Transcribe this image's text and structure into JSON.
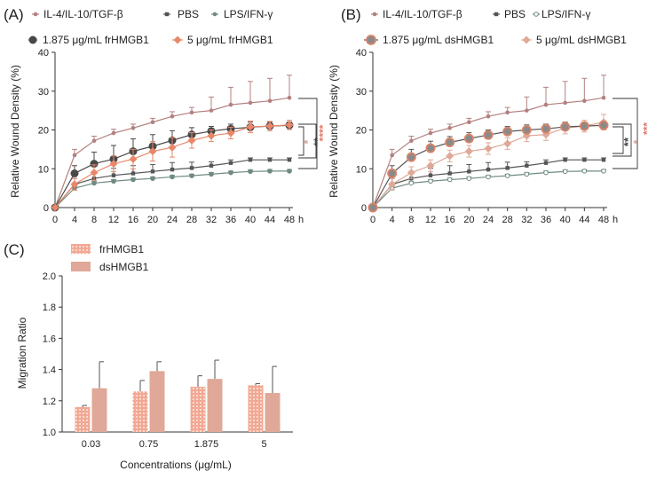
{
  "colors": {
    "il4": "#b48080",
    "pbs": "#555555",
    "lps": "#6f8a82",
    "fr_low": "#484848",
    "fr_high": "#e8876a",
    "ds_high": "#dfa898",
    "ds_low_fill": "#8a8a8a",
    "ds_low_edge": "#d98468",
    "bar_fr": "#f2a892",
    "bar_ds": "#e0a898",
    "axis": "#333333",
    "star_dark": "#444444",
    "star_red": "#e0786a",
    "star_pink": "#dca090"
  },
  "chart_data": [
    {
      "panel": "(A)",
      "type": "line",
      "ylabel": "Relative Wound Density (%)",
      "x_unit": "h",
      "ylim": [
        0,
        40
      ],
      "yticks": [
        0,
        10,
        20,
        30,
        40
      ],
      "x": [
        0,
        4,
        8,
        12,
        16,
        20,
        24,
        28,
        32,
        36,
        40,
        44,
        48
      ],
      "legend": [
        "IL-4/IL-10/TGF-β",
        "PBS",
        "LPS/IFN-γ",
        "1.875 μg/mL frHMGB1",
        "5 μg/mL frHMGB1"
      ],
      "series": [
        {
          "name": "IL-4/IL-10/TGF-β",
          "key": "il4",
          "values": [
            0,
            13.5,
            17.2,
            19.2,
            20.5,
            22.0,
            23.5,
            24.5,
            25.0,
            26.5,
            27.0,
            27.5,
            28.3
          ],
          "err": [
            0,
            1.5,
            1.2,
            1.0,
            1.0,
            1.0,
            1.2,
            1.3,
            3.5,
            4.5,
            5.5,
            5.8,
            5.8
          ]
        },
        {
          "name": "PBS",
          "key": "pbs",
          "values": [
            0,
            6.0,
            7.5,
            8.3,
            8.8,
            9.3,
            9.8,
            10.2,
            10.8,
            11.5,
            12.3,
            12.3,
            12.3
          ],
          "err": [
            0,
            1.5,
            1.8,
            1.8,
            2.0,
            1.8,
            1.8,
            1.5,
            1.0,
            0.8,
            0.5,
            0.5,
            0.5
          ]
        },
        {
          "name": "LPS/IFN-γ",
          "key": "lps",
          "values": [
            0,
            5.0,
            6.3,
            6.8,
            7.2,
            7.5,
            7.9,
            8.2,
            8.6,
            9.0,
            9.3,
            9.4,
            9.4
          ],
          "err": [
            0,
            0.5,
            0.4,
            0.4,
            0.4,
            0.4,
            0.4,
            0.4,
            0.4,
            0.4,
            0.4,
            0.4,
            0.4
          ]
        },
        {
          "name": "1.875 μg/mL frHMGB1",
          "key": "fr_low",
          "values": [
            0,
            8.8,
            11.3,
            12.5,
            14.5,
            15.8,
            17.3,
            18.8,
            19.7,
            20.3,
            20.7,
            21.0,
            21.2
          ],
          "err": [
            0,
            2.0,
            3.0,
            3.5,
            3.2,
            3.0,
            2.5,
            1.8,
            1.2,
            1.2,
            1.3,
            1.0,
            0.8
          ]
        },
        {
          "name": "5 μg/mL frHMGB1",
          "key": "fr_high",
          "values": [
            0,
            6.0,
            9.0,
            11.3,
            12.5,
            14.5,
            15.5,
            17.3,
            18.5,
            19.2,
            20.8,
            21.0,
            21.3
          ],
          "err": [
            0,
            1.5,
            2.0,
            2.0,
            2.5,
            2.5,
            2.5,
            2.0,
            1.5,
            1.5,
            1.5,
            1.2,
            1.2
          ]
        }
      ],
      "significance": [
        {
          "label": "****",
          "color": "star_red"
        },
        {
          "label": "*",
          "color": "star_pink"
        },
        {
          "label": "**",
          "color": "star_dark"
        }
      ]
    },
    {
      "panel": "(B)",
      "type": "line",
      "ylabel": "Relative Wound Density (%)",
      "x_unit": "h",
      "ylim": [
        0,
        40
      ],
      "yticks": [
        0,
        10,
        20,
        30,
        40
      ],
      "x": [
        0,
        4,
        8,
        12,
        16,
        20,
        24,
        28,
        32,
        36,
        40,
        44,
        48
      ],
      "legend": [
        "IL-4/IL-10/TGF-β",
        "PBS",
        "LPS/IFN-γ",
        "1.875 μg/mL dsHMGB1",
        "5 μg/mL dsHMGB1"
      ],
      "series": [
        {
          "name": "IL-4/IL-10/TGF-β",
          "key": "il4",
          "values": [
            0,
            13.5,
            17.2,
            19.2,
            20.5,
            22.0,
            23.5,
            24.5,
            25.0,
            26.5,
            27.0,
            27.5,
            28.3
          ],
          "err": [
            0,
            1.5,
            1.2,
            1.0,
            1.0,
            1.0,
            1.2,
            1.3,
            3.5,
            4.5,
            5.5,
            5.8,
            5.8
          ]
        },
        {
          "name": "PBS",
          "key": "pbs",
          "values": [
            0,
            6.0,
            7.5,
            8.3,
            8.8,
            9.3,
            9.8,
            10.2,
            10.8,
            11.5,
            12.3,
            12.3,
            12.3
          ],
          "err": [
            0,
            1.5,
            1.8,
            1.8,
            2.0,
            1.8,
            1.8,
            1.5,
            1.0,
            0.8,
            0.5,
            0.5,
            0.5
          ]
        },
        {
          "name": "LPS/IFN-γ",
          "key": "lps",
          "values": [
            0,
            5.0,
            6.3,
            6.8,
            7.2,
            7.5,
            7.9,
            8.2,
            8.6,
            9.0,
            9.3,
            9.4,
            9.4
          ],
          "err": [
            0,
            0.5,
            0.4,
            0.4,
            0.4,
            0.4,
            0.4,
            0.4,
            0.4,
            0.4,
            0.4,
            0.4,
            0.4
          ]
        },
        {
          "name": "1.875 μg/mL dsHMGB1",
          "key": "ds_low",
          "values": [
            0,
            8.8,
            13.0,
            15.3,
            16.8,
            17.8,
            18.7,
            19.6,
            20.0,
            20.3,
            20.8,
            21.0,
            21.2
          ],
          "err": [
            0,
            2.0,
            2.0,
            1.8,
            1.5,
            1.5,
            1.3,
            1.3,
            1.3,
            1.2,
            1.2,
            1.0,
            1.0
          ]
        },
        {
          "name": "5 μg/mL dsHMGB1",
          "key": "ds_high",
          "values": [
            0,
            6.0,
            9.0,
            10.8,
            13.3,
            14.5,
            15.2,
            16.5,
            18.5,
            18.8,
            20.5,
            21.0,
            22.0
          ],
          "err": [
            0,
            1.5,
            1.5,
            1.5,
            1.5,
            1.5,
            1.5,
            1.5,
            1.5,
            1.5,
            1.5,
            1.5,
            2.0
          ]
        }
      ],
      "significance": [
        {
          "label": "***",
          "color": "star_red"
        },
        {
          "label": "*",
          "color": "star_pink"
        },
        {
          "label": "**",
          "color": "star_dark"
        }
      ]
    },
    {
      "panel": "(C)",
      "type": "bar",
      "xlabel": "Concentrations (μg/mL)",
      "ylabel": "Migration Ratio",
      "ylim": [
        1.0,
        2.0
      ],
      "yticks": [
        "1.0",
        "1.2",
        "1.4",
        "1.6",
        "1.8",
        "2.0"
      ],
      "categories": [
        "0.03",
        "0.75",
        "1.875",
        "5"
      ],
      "series": [
        {
          "name": "frHMGB1",
          "key": "bar_fr",
          "values": [
            1.16,
            1.26,
            1.29,
            1.3
          ],
          "err": [
            0.01,
            0.07,
            0.07,
            0.01
          ]
        },
        {
          "name": "dsHMGB1",
          "key": "bar_ds",
          "values": [
            1.28,
            1.39,
            1.34,
            1.25
          ],
          "err": [
            0.17,
            0.06,
            0.12,
            0.17
          ]
        }
      ]
    }
  ]
}
